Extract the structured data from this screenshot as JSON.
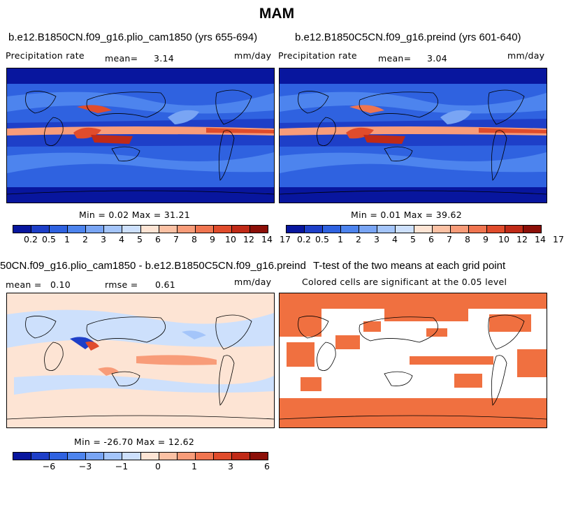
{
  "title": "MAM",
  "panels": {
    "a": {
      "title": "b.e12.B1850CN.f09_g16.plio_cam1850 (yrs 655-694)",
      "left_label": "Precipitation rate",
      "mean_label": "mean=",
      "mean_value": "3.14",
      "units": "mm/day",
      "stats": "Min =   0.02 Max =  31.21"
    },
    "b": {
      "title": "b.e12.B1850C5CN.f09_g16.preind (yrs 601-640)",
      "left_label": "Precipitation rate",
      "mean_label": "mean=",
      "mean_value": "3.04",
      "units": "mm/day",
      "stats": "Min =   0.01 Max =  39.62"
    },
    "c": {
      "title": "50CN.f09_g16.plio_cam1850 - b.e12.B1850C5CN.f09_g16.preind",
      "mean_label": "mean =",
      "mean_value": "0.10",
      "rmse_label": "rmse =",
      "rmse_value": "0.61",
      "units": "mm/day",
      "stats": "Min = -26.70 Max =  12.62"
    },
    "d": {
      "title": "T-test of the two means at each grid point",
      "subtitle": "Colored cells are significant at the 0.05 level"
    }
  },
  "colorbars": {
    "precip_colors": [
      "#08169e",
      "#1e3fc8",
      "#2f62e0",
      "#4d84ee",
      "#79a5f4",
      "#a4c5fa",
      "#cde0fc",
      "#fde4d4",
      "#fbc1a4",
      "#f89c79",
      "#f07550",
      "#e04c2c",
      "#c02a17",
      "#8c0f08"
    ],
    "precip_ticks": [
      "0.2",
      "0.5",
      "1",
      "2",
      "3",
      "4",
      "5",
      "6",
      "7",
      "8",
      "9",
      "10",
      "12",
      "14",
      "17"
    ],
    "diff_colors": [
      "#08169e",
      "#1e3fc8",
      "#2f62e0",
      "#4d84ee",
      "#79a5f4",
      "#a4c5fa",
      "#cde0fc",
      "#fde4d4",
      "#fbc1a4",
      "#f89c79",
      "#f07550",
      "#e04c2c",
      "#c02a17",
      "#8c0f08"
    ],
    "diff_ticks": [
      "−6",
      "−3",
      "−1",
      "0",
      "1",
      "3",
      "6"
    ]
  },
  "chart_data": [
    {
      "type": "heatmap",
      "title": "b.e12.B1850CN.f09_g16.plio_cam1850 (yrs 655-694)",
      "variable": "Precipitation rate",
      "units": "mm/day",
      "mean": 3.14,
      "min": 0.02,
      "max": 31.21,
      "colorbar_levels": [
        0.2,
        0.5,
        1,
        2,
        3,
        4,
        5,
        6,
        7,
        8,
        9,
        10,
        12,
        14,
        17
      ]
    },
    {
      "type": "heatmap",
      "title": "b.e12.B1850C5CN.f09_g16.preind (yrs 601-640)",
      "variable": "Precipitation rate",
      "units": "mm/day",
      "mean": 3.04,
      "min": 0.01,
      "max": 39.62,
      "colorbar_levels": [
        0.2,
        0.5,
        1,
        2,
        3,
        4,
        5,
        6,
        7,
        8,
        9,
        10,
        12,
        14,
        17
      ]
    },
    {
      "type": "heatmap",
      "title": "50CN.f09_g16.plio_cam1850 - b.e12.B1850C5CN.f09_g16.preind",
      "units": "mm/day",
      "mean": 0.1,
      "rmse": 0.61,
      "min": -26.7,
      "max": 12.62,
      "colorbar_levels": [
        -6,
        -3,
        -1,
        0,
        1,
        3,
        6
      ]
    },
    {
      "type": "heatmap",
      "title": "T-test of the two means at each grid point",
      "subtitle": "Colored cells are significant at the 0.05 level",
      "significance_level": 0.05,
      "significant_color": "#f07040"
    }
  ]
}
